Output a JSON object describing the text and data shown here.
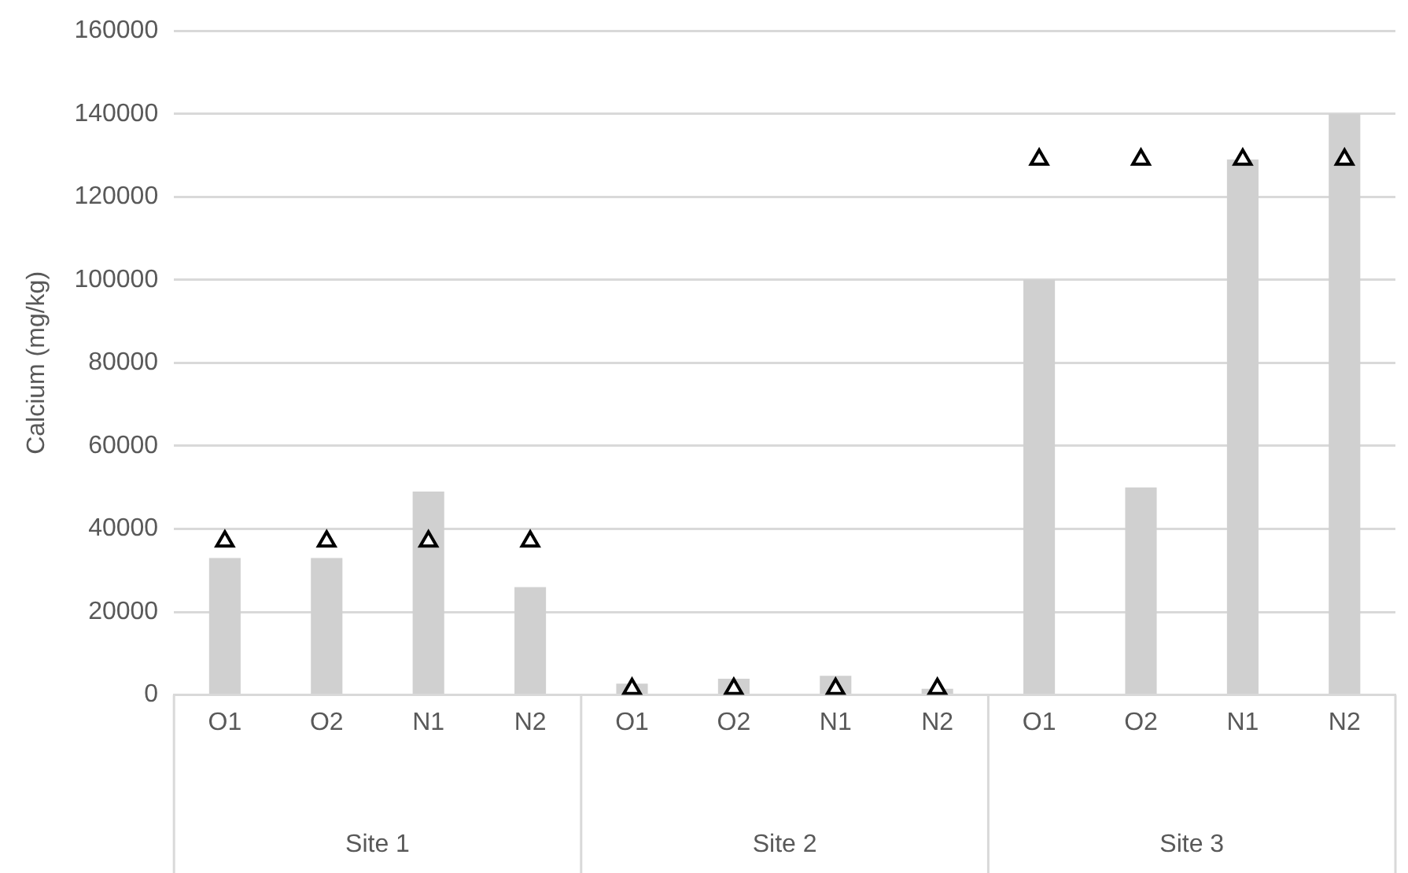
{
  "chart_data": {
    "type": "bar",
    "ylabel": "Calcium (mg/kg)",
    "categories": [
      "O1",
      "O2",
      "N1",
      "N2",
      "O1",
      "O2",
      "N1",
      "N2",
      "O1",
      "O2",
      "N1",
      "N2"
    ],
    "annotations": [
      "Site 1",
      "Site 2",
      "Site 3"
    ],
    "series": [
      {
        "color": "#d0d0d0",
        "values": [
          33000,
          33000,
          49000,
          26000,
          2700,
          3900,
          4600,
          1500,
          100000,
          50000,
          129000,
          140000
        ]
      },
      {
        "type": "scatter",
        "color": "#000000",
        "values": [
          37000,
          37000,
          37000,
          37000,
          1500,
          1500,
          1500,
          1500,
          129000,
          129000,
          129000,
          129000
        ]
      }
    ],
    "marker": "triangle",
    "ylim": [
      0,
      160000
    ],
    "yticks": [
      0,
      20000,
      40000,
      60000,
      80000,
      100000,
      120000,
      140000,
      160000
    ],
    "grid": "y",
    "legend": false
  }
}
